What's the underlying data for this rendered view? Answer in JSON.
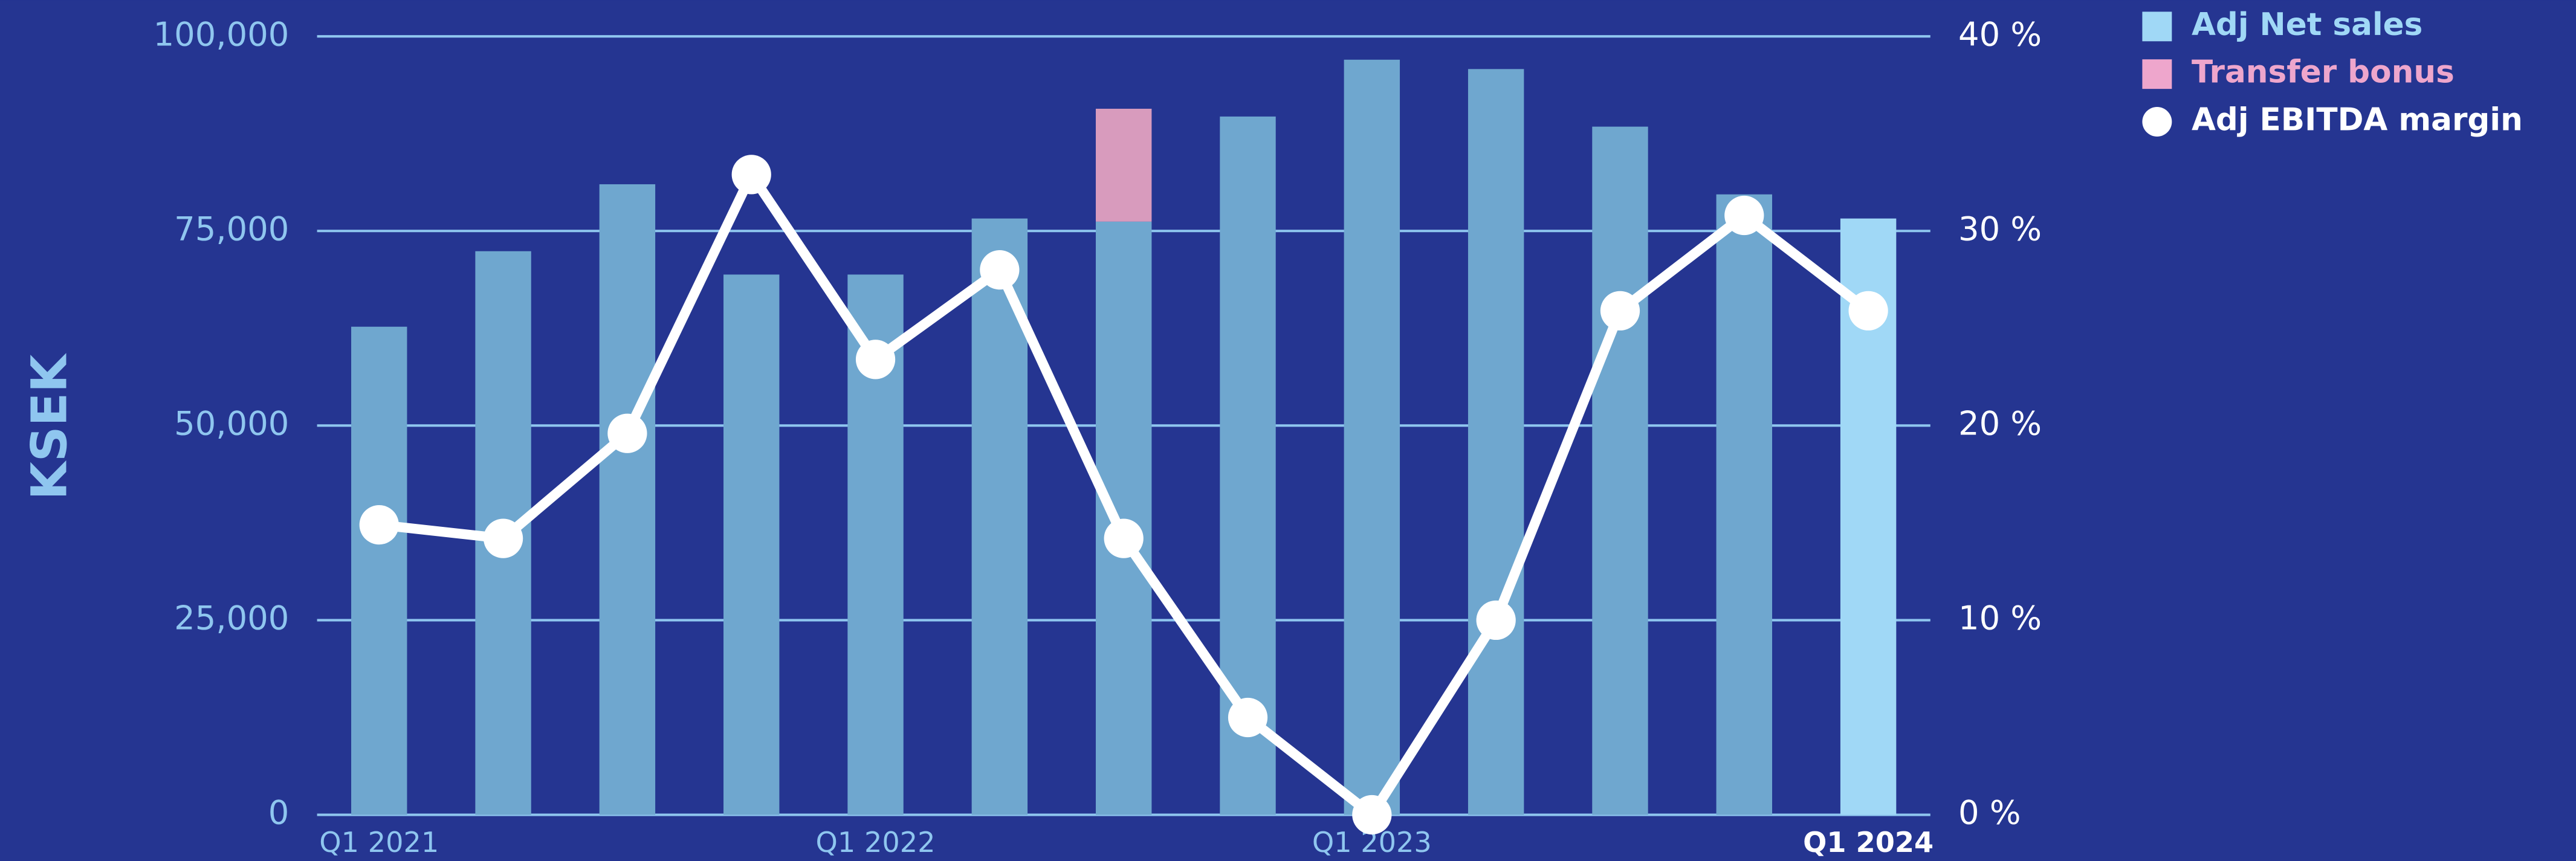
{
  "chart_data": {
    "type": "bar",
    "y_label": "KSEK",
    "categories": [
      "Q1 2021",
      null,
      null,
      null,
      "Q1 2022",
      null,
      null,
      null,
      "Q1 2023",
      null,
      null,
      null,
      "Q1 2024"
    ],
    "series": [
      {
        "name": "Adj Net sales",
        "color": "#a0d8f6",
        "bar_colors": [
          "#6fa7cf",
          "#6fa7cf",
          "#6fa7cf",
          "#6fa7cf",
          "#6fa7cf",
          "#6fa7cf",
          "#6fa7cf",
          "#6fa7cf",
          "#6fa7cf",
          "#6fa7cf",
          "#6fa7cf",
          "#6fa7cf",
          "#a0d8f6"
        ],
        "values": [
          62700,
          72400,
          81000,
          69400,
          69400,
          76600,
          76200,
          89700,
          97000,
          95800,
          88400,
          79700,
          76600
        ]
      },
      {
        "name": "Transfer bonus",
        "color": "#eea6cc",
        "bar_color": "#d89bbd",
        "values": [
          null,
          null,
          null,
          null,
          null,
          null,
          14500,
          null,
          null,
          null,
          null,
          null,
          null
        ]
      },
      {
        "name": "Adj EBITDA margin",
        "color": "#ffffff",
        "type": "line",
        "axis": "y2",
        "values": [
          14.9,
          14.2,
          19.6,
          32.9,
          23.4,
          28.0,
          14.2,
          5.0,
          0,
          10.0,
          25.9,
          30.8,
          25.9
        ]
      }
    ],
    "ylim": [
      0,
      100000
    ],
    "yticks": [
      0,
      {
        "value": 25000,
        "label": "25,000"
      },
      {
        "value": 50000,
        "label": "50,000"
      },
      {
        "value": 75000,
        "label": "75,000"
      },
      {
        "value": 100000,
        "label": "100,000"
      }
    ],
    "y2lim": [
      0,
      40
    ],
    "y2ticks": [
      {
        "value": 0,
        "label": "0 %"
      },
      {
        "value": 10,
        "label": "10 %"
      },
      {
        "value": 20,
        "label": "20 %"
      },
      {
        "value": 30,
        "label": "30 %"
      },
      {
        "value": 40,
        "label": "40 %"
      }
    ],
    "grid": true,
    "legend": "top-right"
  }
}
